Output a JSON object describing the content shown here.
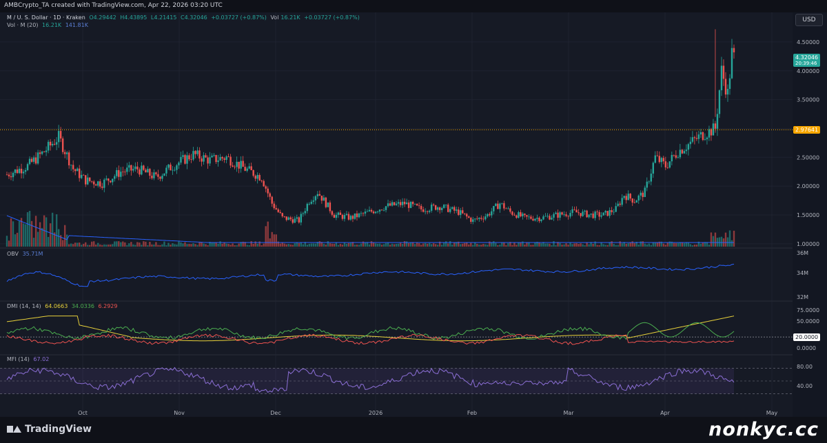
{
  "caption": "AMBCrypto_TA created with TradingView.com, Apr 22, 2026 03:20 UTC",
  "currency_button": "USD",
  "brand": "TradingView",
  "watermark": "nonkyc.cc",
  "legend": {
    "symbol": "M / U. S. Dollar · 1D · Kraken",
    "open": "O4.29442",
    "high": "H4.43895",
    "low": "L4.21415",
    "close": "C4.32046",
    "change": "+0.03727 (+0.87%)",
    "vol_label": "Vol",
    "vol_value": "16.21K",
    "vol_change": "+0.03727 (+0.87%)",
    "volma_label": "Vol · M (20)",
    "volma_v1": "16.21K",
    "volma_v2": "141.81K",
    "obv_label": "OBV",
    "obv_value": "35.71M",
    "dmi_label": "DMI (14, 14)",
    "dmi_adx": "64.0663",
    "dmi_plus": "34.0336",
    "dmi_minus": "6.2929",
    "mfi_label": "MFI (14)",
    "mfi_value": "67.02"
  },
  "price_tags": {
    "current": "4.32046",
    "countdown": "20:39:46",
    "level": "2.97641",
    "dmi_level": "20.0000"
  },
  "colors": {
    "up": "#26a69a",
    "down": "#ef5350",
    "vol_up": "#26a69a",
    "vol_down": "#ef5350",
    "volma": "#2962ff",
    "obv": "#2962ff",
    "adx": "#e8d13a",
    "di_plus": "#4caf50",
    "di_minus": "#ef5350",
    "mfi": "#8c6fd6",
    "level": "#f7a600"
  },
  "chart_data": {
    "type": "candlestick",
    "x_labels": [
      "Oct",
      "Nov",
      "Dec",
      "2026",
      "Feb",
      "Mar",
      "Apr",
      "May"
    ],
    "price_axis": {
      "ticks": [
        "4.50000",
        "4.00000",
        "3.50000",
        "3.00000",
        "2.50000",
        "2.00000",
        "1.50000",
        "1.00000"
      ],
      "range": [
        0.95,
        4.75
      ]
    },
    "horizontal_level": 2.97641,
    "price_anchors": [
      [
        0,
        2.2
      ],
      [
        10,
        2.35
      ],
      [
        18,
        2.6
      ],
      [
        25,
        2.85
      ],
      [
        32,
        2.3
      ],
      [
        38,
        2.1
      ],
      [
        46,
        2.05
      ],
      [
        55,
        2.25
      ],
      [
        63,
        2.3
      ],
      [
        72,
        2.15
      ],
      [
        80,
        2.35
      ],
      [
        90,
        2.55
      ],
      [
        98,
        2.45
      ],
      [
        106,
        2.5
      ],
      [
        115,
        2.3
      ],
      [
        123,
        2.15
      ],
      [
        128,
        1.7
      ],
      [
        133,
        1.45
      ],
      [
        141,
        1.4
      ],
      [
        146,
        1.75
      ],
      [
        150,
        1.9
      ],
      [
        158,
        1.5
      ],
      [
        166,
        1.45
      ],
      [
        175,
        1.55
      ],
      [
        183,
        1.65
      ],
      [
        192,
        1.7
      ],
      [
        200,
        1.6
      ],
      [
        209,
        1.65
      ],
      [
        218,
        1.55
      ],
      [
        225,
        1.4
      ],
      [
        232,
        1.5
      ],
      [
        238,
        1.7
      ],
      [
        243,
        1.55
      ],
      [
        250,
        1.45
      ],
      [
        258,
        1.45
      ],
      [
        266,
        1.5
      ],
      [
        274,
        1.55
      ],
      [
        282,
        1.5
      ],
      [
        288,
        1.5
      ],
      [
        294,
        1.6
      ],
      [
        298,
        1.85
      ],
      [
        303,
        1.75
      ],
      [
        308,
        1.9
      ],
      [
        313,
        2.5
      ],
      [
        318,
        2.35
      ],
      [
        324,
        2.6
      ],
      [
        330,
        2.75
      ],
      [
        336,
        2.9
      ],
      [
        342,
        3.0
      ],
      [
        345,
        4.0
      ],
      [
        348,
        3.6
      ],
      [
        350,
        4.3
      ],
      [
        352,
        4.32
      ]
    ],
    "obv_axis": {
      "ticks": [
        "36M",
        "34M",
        "32M"
      ]
    },
    "dmi_axis": {
      "ticks": [
        "75.0000",
        "50.0000",
        "0.0000"
      ],
      "level": 20
    },
    "mfi_axis": {
      "ticks": [
        "80.00",
        "40.00"
      ],
      "band": [
        20,
        80
      ]
    },
    "candle_count": 352
  }
}
